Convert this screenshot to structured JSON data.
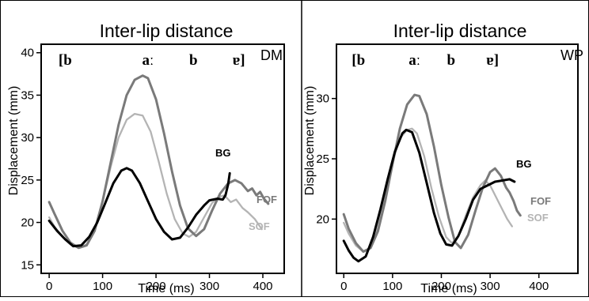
{
  "colors": {
    "frame": "#000000",
    "BG": "#000000",
    "FOF": "#7a7a7a",
    "SOF": "#b4b4b4"
  },
  "chart_data": [
    {
      "type": "line",
      "title": "Inter-lip distance",
      "speaker": "DM",
      "xlabel": "Time (ms)",
      "ylabel": "Displacement (mm)",
      "xlim": [
        -15,
        440
      ],
      "ylim": [
        14,
        41
      ],
      "xticks": [
        0,
        100,
        200,
        300,
        400
      ],
      "yticks": [
        15,
        20,
        25,
        30,
        35,
        40
      ],
      "segments": [
        {
          "label": "[b",
          "x": 30
        },
        {
          "label": "aː",
          "x": 185
        },
        {
          "label": "b",
          "x": 270
        },
        {
          "label": "ɐ]",
          "x": 355
        }
      ],
      "grid": false,
      "legend": "inline labels at line ends",
      "series": [
        {
          "name": "BG",
          "points": [
            [
              0,
              20.2
            ],
            [
              15,
              19.0
            ],
            [
              30,
              18.0
            ],
            [
              45,
              17.2
            ],
            [
              60,
              17.3
            ],
            [
              75,
              18.3
            ],
            [
              90,
              20.0
            ],
            [
              105,
              22.3
            ],
            [
              120,
              24.6
            ],
            [
              135,
              26.1
            ],
            [
              145,
              26.4
            ],
            [
              155,
              26.1
            ],
            [
              170,
              24.6
            ],
            [
              185,
              22.5
            ],
            [
              200,
              20.4
            ],
            [
              215,
              18.9
            ],
            [
              230,
              18.0
            ],
            [
              245,
              18.2
            ],
            [
              260,
              19.4
            ],
            [
              275,
              20.9
            ],
            [
              290,
              22.0
            ],
            [
              300,
              22.6
            ],
            [
              315,
              22.8
            ],
            [
              325,
              22.7
            ],
            [
              330,
              23.2
            ],
            [
              335,
              24.5
            ],
            [
              338,
              25.8
            ]
          ]
        },
        {
          "name": "FOF",
          "points": [
            [
              0,
              22.4
            ],
            [
              10,
              21.0
            ],
            [
              25,
              19.0
            ],
            [
              40,
              17.6
            ],
            [
              55,
              17.0
            ],
            [
              70,
              17.3
            ],
            [
              85,
              19.0
            ],
            [
              100,
              22.5
            ],
            [
              115,
              27.0
            ],
            [
              130,
              31.5
            ],
            [
              145,
              35.0
            ],
            [
              160,
              36.8
            ],
            [
              175,
              37.3
            ],
            [
              185,
              37.0
            ],
            [
              200,
              34.5
            ],
            [
              215,
              30.5
            ],
            [
              230,
              26.0
            ],
            [
              245,
              22.0
            ],
            [
              260,
              19.3
            ],
            [
              275,
              18.4
            ],
            [
              290,
              19.2
            ],
            [
              305,
              21.4
            ],
            [
              320,
              23.4
            ],
            [
              335,
              24.6
            ],
            [
              348,
              25.0
            ],
            [
              360,
              24.6
            ],
            [
              372,
              23.7
            ],
            [
              380,
              24.0
            ],
            [
              388,
              23.2
            ],
            [
              395,
              23.6
            ],
            [
              402,
              22.8
            ],
            [
              410,
              22.2
            ]
          ]
        },
        {
          "name": "SOF",
          "points": [
            [
              0,
              20.6
            ],
            [
              10,
              19.5
            ],
            [
              25,
              18.3
            ],
            [
              40,
              17.4
            ],
            [
              55,
              17.0
            ],
            [
              70,
              17.4
            ],
            [
              85,
              19.2
            ],
            [
              100,
              22.5
            ],
            [
              115,
              26.5
            ],
            [
              130,
              30.0
            ],
            [
              145,
              32.1
            ],
            [
              160,
              32.8
            ],
            [
              175,
              32.6
            ],
            [
              190,
              30.7
            ],
            [
              205,
              27.2
            ],
            [
              220,
              23.4
            ],
            [
              235,
              20.4
            ],
            [
              250,
              18.7
            ],
            [
              262,
              18.3
            ],
            [
              275,
              18.9
            ],
            [
              290,
              20.6
            ],
            [
              305,
              22.3
            ],
            [
              318,
              23.0
            ],
            [
              328,
              23.2
            ],
            [
              340,
              22.4
            ],
            [
              350,
              22.7
            ],
            [
              362,
              21.7
            ],
            [
              372,
              21.2
            ],
            [
              385,
              20.4
            ],
            [
              398,
              19.2
            ]
          ]
        }
      ]
    },
    {
      "type": "line",
      "title": "Inter-lip distance",
      "speaker": "WP",
      "xlabel": "Time (ms)",
      "ylabel": "Displacement (mm)",
      "xlim": [
        -15,
        480
      ],
      "ylim": [
        15.5,
        34.5
      ],
      "xticks": [
        0,
        100,
        200,
        300,
        400
      ],
      "yticks": [
        20,
        25,
        30
      ],
      "segments": [
        {
          "label": "[b",
          "x": 30
        },
        {
          "label": "aː",
          "x": 145
        },
        {
          "label": "b",
          "x": 220
        },
        {
          "label": "ɐ]",
          "x": 305
        }
      ],
      "grid": false,
      "legend": "inline labels at line ends",
      "series": [
        {
          "name": "BG",
          "points": [
            [
              0,
              18.2
            ],
            [
              10,
              17.4
            ],
            [
              20,
              16.8
            ],
            [
              30,
              16.5
            ],
            [
              45,
              16.9
            ],
            [
              60,
              18.5
            ],
            [
              75,
              20.8
            ],
            [
              90,
              23.3
            ],
            [
              105,
              25.6
            ],
            [
              120,
              27.1
            ],
            [
              128,
              27.4
            ],
            [
              140,
              27.2
            ],
            [
              155,
              25.5
            ],
            [
              170,
              23.0
            ],
            [
              185,
              20.5
            ],
            [
              198,
              18.8
            ],
            [
              210,
              17.9
            ],
            [
              222,
              17.8
            ],
            [
              235,
              18.6
            ],
            [
              250,
              20.0
            ],
            [
              265,
              21.6
            ],
            [
              280,
              22.5
            ],
            [
              295,
              22.8
            ],
            [
              310,
              23.1
            ],
            [
              325,
              23.2
            ],
            [
              340,
              23.3
            ],
            [
              350,
              23.1
            ]
          ]
        },
        {
          "name": "FOF",
          "points": [
            [
              0,
              20.4
            ],
            [
              10,
              19.2
            ],
            [
              25,
              18.0
            ],
            [
              40,
              17.3
            ],
            [
              55,
              17.6
            ],
            [
              70,
              19.0
            ],
            [
              85,
              21.5
            ],
            [
              100,
              24.6
            ],
            [
              115,
              27.5
            ],
            [
              130,
              29.5
            ],
            [
              145,
              30.3
            ],
            [
              155,
              30.2
            ],
            [
              170,
              28.7
            ],
            [
              185,
              26.0
            ],
            [
              200,
              22.8
            ],
            [
              215,
              20.1
            ],
            [
              228,
              18.1
            ],
            [
              240,
              17.6
            ],
            [
              255,
              18.7
            ],
            [
              270,
              20.7
            ],
            [
              285,
              22.6
            ],
            [
              300,
              23.9
            ],
            [
              310,
              24.2
            ],
            [
              322,
              23.6
            ],
            [
              333,
              22.6
            ],
            [
              340,
              22.2
            ],
            [
              348,
              21.5
            ],
            [
              355,
              20.7
            ],
            [
              362,
              20.3
            ]
          ]
        },
        {
          "name": "SOF",
          "points": [
            [
              0,
              19.7
            ],
            [
              10,
              18.8
            ],
            [
              25,
              17.8
            ],
            [
              40,
              17.3
            ],
            [
              55,
              17.6
            ],
            [
              70,
              19.3
            ],
            [
              85,
              22.0
            ],
            [
              100,
              24.8
            ],
            [
              115,
              26.7
            ],
            [
              130,
              27.4
            ],
            [
              140,
              27.5
            ],
            [
              150,
              27.1
            ],
            [
              165,
              25.2
            ],
            [
              180,
              22.5
            ],
            [
              195,
              20.2
            ],
            [
              210,
              18.5
            ],
            [
              222,
              18.0
            ],
            [
              235,
              18.6
            ],
            [
              250,
              20.3
            ],
            [
              265,
              21.8
            ],
            [
              280,
              22.8
            ],
            [
              290,
              23.2
            ],
            [
              300,
              22.8
            ],
            [
              315,
              21.6
            ],
            [
              325,
              20.8
            ],
            [
              335,
              20.0
            ],
            [
              345,
              19.4
            ]
          ]
        }
      ]
    }
  ]
}
